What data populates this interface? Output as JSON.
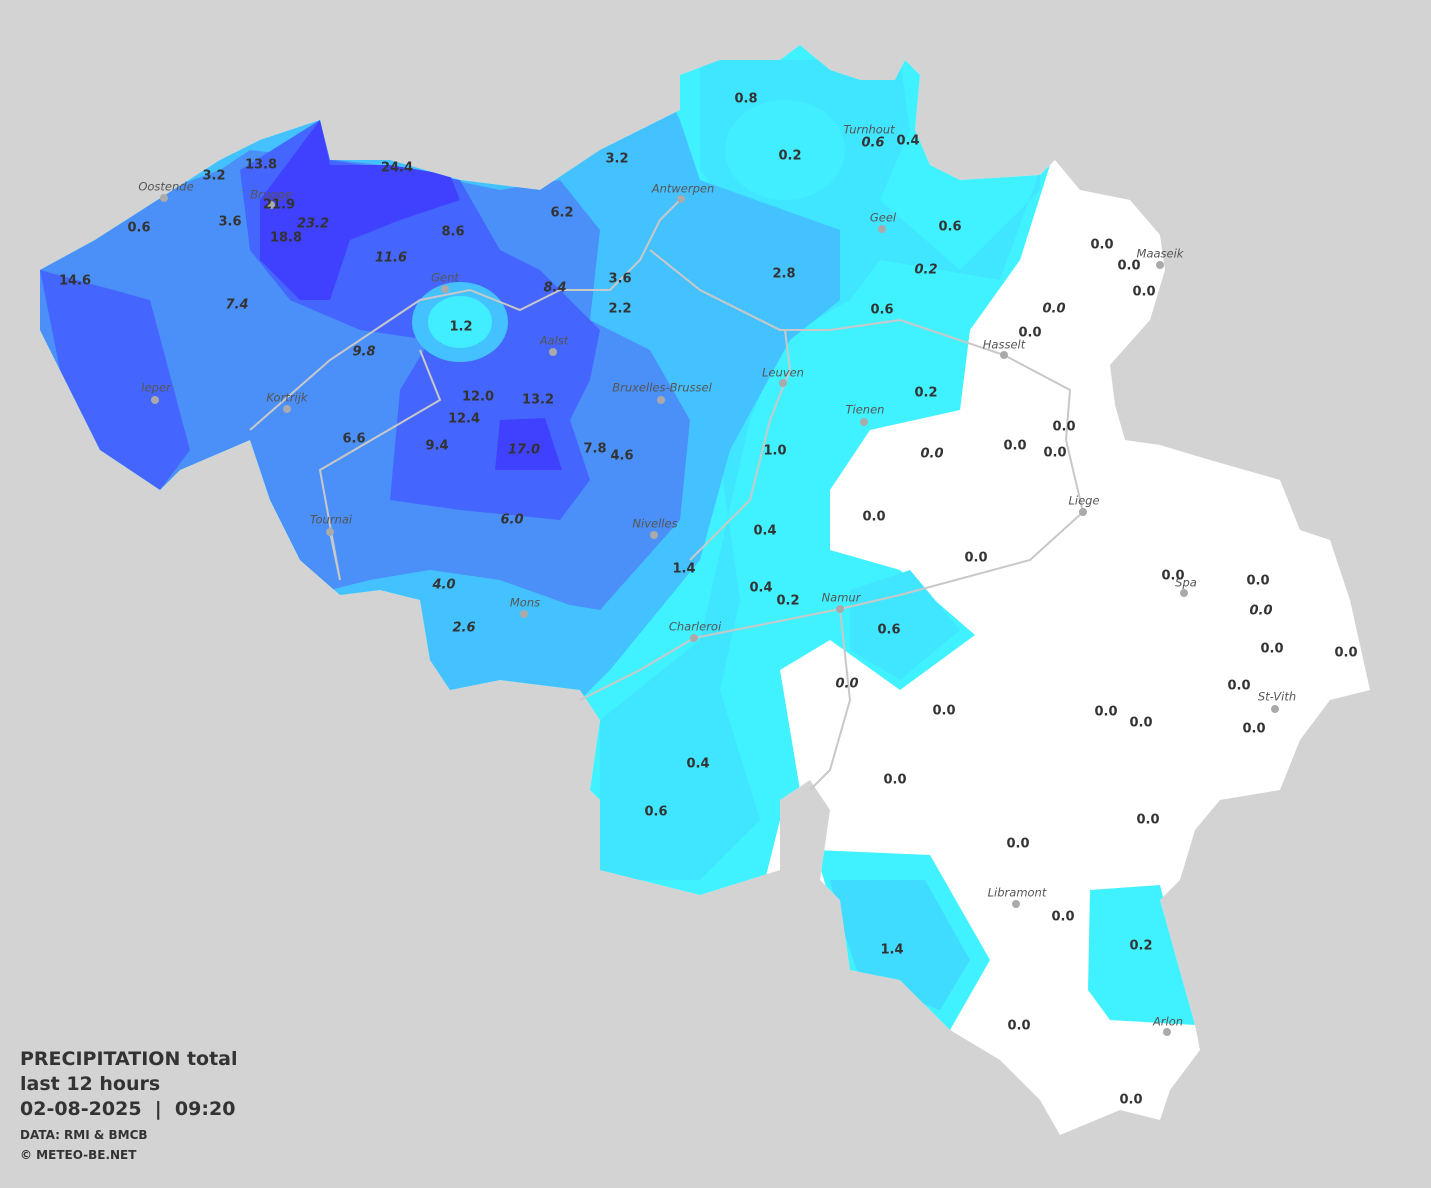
{
  "legend": {
    "title": "PRECIPITATION total",
    "subtitle": "last 12 hours",
    "timestamp": "02-08-2025  |  09:20",
    "source": "DATA: RMI & BMCB",
    "credit": "© METEO-BE.NET"
  },
  "cities": [
    "Oostende",
    "Brugge",
    "Antwerpen",
    "Turnhout",
    "Geel",
    "Maaseik",
    "Gent",
    "Aalst",
    "Hasselt",
    "Leuven",
    "Ieper",
    "Kortrijk",
    "Bruxelles-Brussel",
    "Tienen",
    "Liege",
    "Tournai",
    "Nivelles",
    "Spa",
    "Namur",
    "Mons",
    "Charleroi",
    "St-Vith",
    "Libramont",
    "Arlon"
  ],
  "readings": [
    "0.8",
    "0.2",
    "0.6",
    "0.4",
    "3.2",
    "13.8",
    "24.4",
    "3.2",
    "21.9",
    "23.2",
    "18.8",
    "3.6",
    "0.6",
    "6.2",
    "8.6",
    "0.6",
    "11.6",
    "0.0",
    "0.0",
    "0.2",
    "2.8",
    "14.6",
    "8.4",
    "3.6",
    "0.0",
    "7.4",
    "2.2",
    "0.6",
    "0.0",
    "1.2",
    "0.0",
    "9.8",
    "0.2",
    "12.0",
    "13.2",
    "12.4",
    "0.0",
    "6.6",
    "9.4",
    "17.0",
    "7.8",
    "4.6",
    "1.0",
    "0.0",
    "0.0",
    "0.0",
    "0.0",
    "6.0",
    "0.4",
    "0.0",
    "1.4",
    "0.0",
    "0.0",
    "4.0",
    "0.4",
    "0.2",
    "0.0",
    "2.6",
    "0.6",
    "0.0",
    "0.0",
    "0.0",
    "0.0",
    "0.0",
    "0.0",
    "0.0",
    "0.0",
    "0.4",
    "0.0",
    "0.6",
    "0.0",
    "0.0",
    "0.0",
    "0.2",
    "1.4",
    "0.0",
    "0.0"
  ]
}
